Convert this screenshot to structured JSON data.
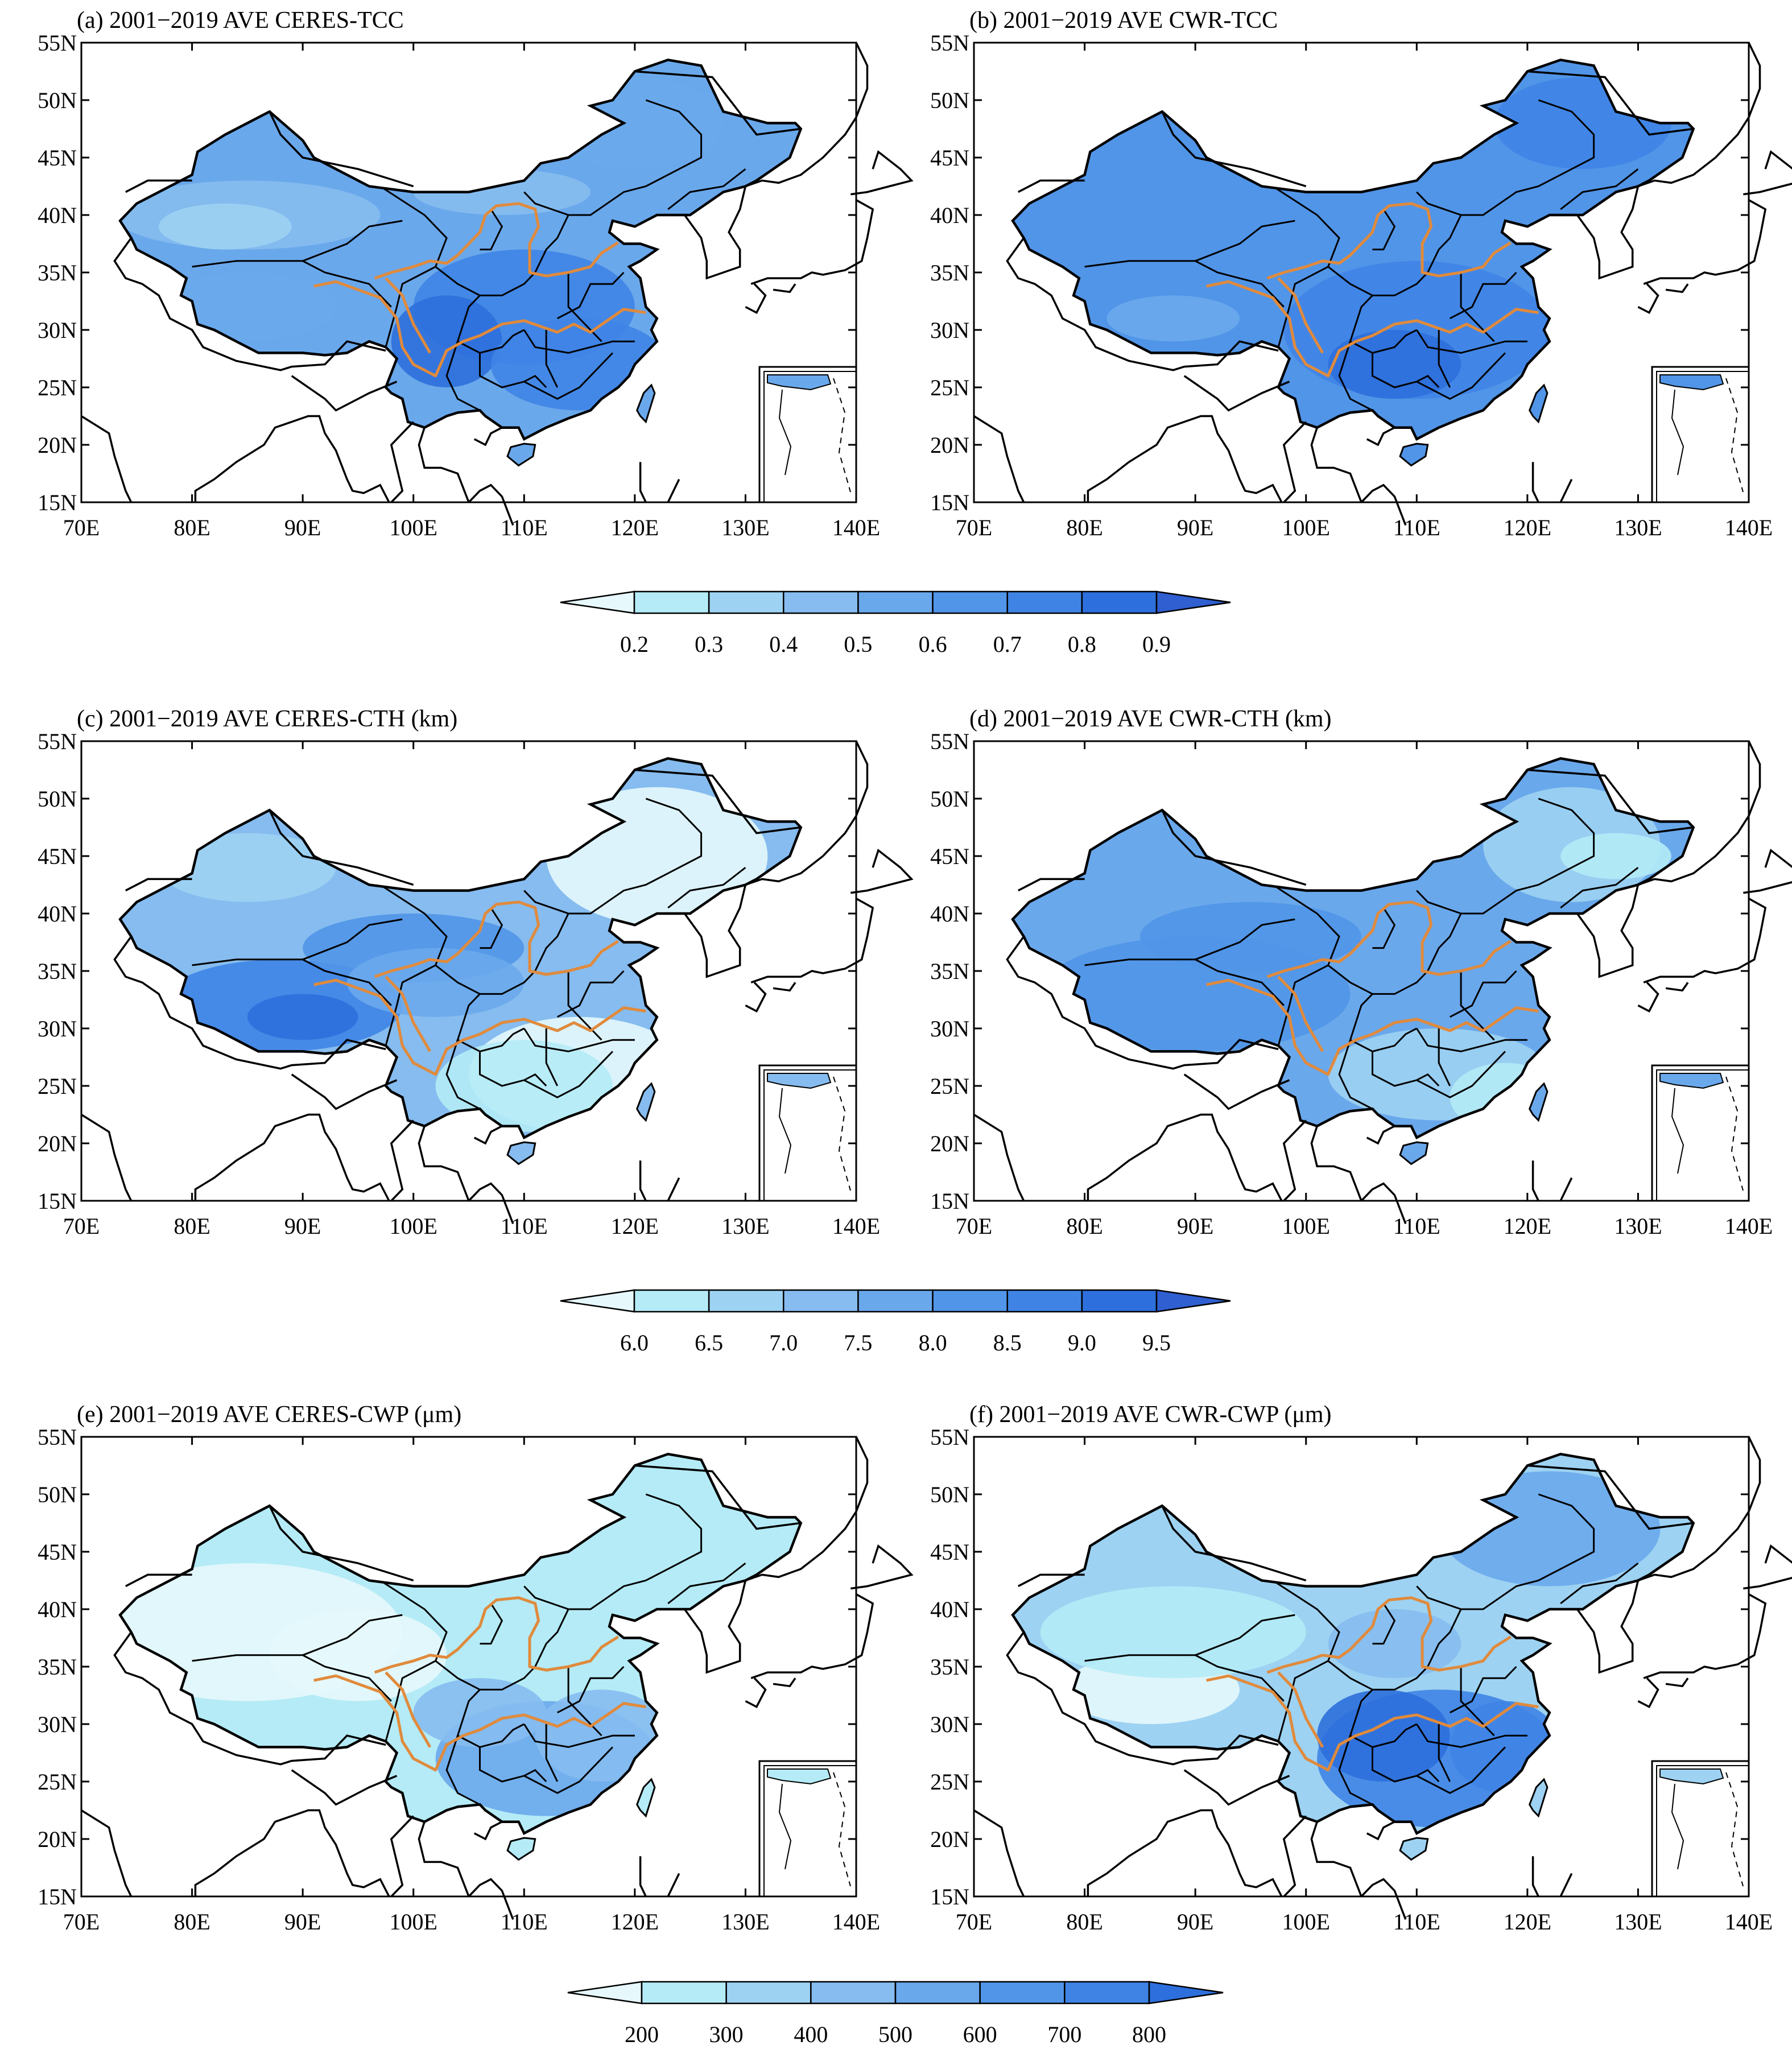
{
  "panels": [
    {
      "id": "a",
      "title": "(a) 2001−2019 AVE CERES-TCC",
      "row": 0,
      "col": 0,
      "scheme": "tcc_ceres"
    },
    {
      "id": "b",
      "title": "(b) 2001−2019 AVE CWR-TCC",
      "row": 0,
      "col": 1,
      "scheme": "tcc_cwr"
    },
    {
      "id": "c",
      "title": "(c) 2001−2019 AVE CERES-CTH (km)",
      "row": 1,
      "col": 0,
      "scheme": "cth_ceres"
    },
    {
      "id": "d",
      "title": "(d) 2001−2019 AVE CWR-CTH (km)",
      "row": 1,
      "col": 1,
      "scheme": "cth_cwr"
    },
    {
      "id": "e",
      "title": "(e) 2001−2019 AVE CERES-CWP (μm)",
      "row": 2,
      "col": 0,
      "scheme": "cwp_ceres"
    },
    {
      "id": "f",
      "title": "(f) 2001−2019 AVE CWR-CWP (μm)",
      "row": 2,
      "col": 1,
      "scheme": "cwp_cwr"
    }
  ],
  "axes": {
    "lat_labels": [
      "55N",
      "50N",
      "45N",
      "40N",
      "35N",
      "30N",
      "25N",
      "20N",
      "15N"
    ],
    "lon_labels": [
      "70E",
      "80E",
      "90E",
      "100E",
      "110E",
      "120E",
      "130E",
      "140E"
    ],
    "lat_range": [
      15,
      55
    ],
    "lon_range": [
      70,
      140
    ]
  },
  "colorbars": [
    {
      "labels": [
        "0.2",
        "0.3",
        "0.4",
        "0.5",
        "0.6",
        "0.7",
        "0.8",
        "0.9"
      ],
      "colors": [
        "#e6f8fc",
        "#b4ebf6",
        "#9dd2f2",
        "#86bcef",
        "#6aa8ec",
        "#5195e8",
        "#3f84e5",
        "#2d6fdc",
        "#2f5fd0"
      ]
    },
    {
      "labels": [
        "6.0",
        "6.5",
        "7.0",
        "7.5",
        "8.0",
        "8.5",
        "9.0",
        "9.5"
      ],
      "colors": [
        "#e6f8fc",
        "#b4ebf6",
        "#9dd2f2",
        "#86bcef",
        "#6aa8ec",
        "#5195e8",
        "#3f84e5",
        "#2d6fdc",
        "#2f5fd0"
      ]
    },
    {
      "labels": [
        "200",
        "300",
        "400",
        "500",
        "600",
        "700",
        "800"
      ],
      "colors": [
        "#e6f8fc",
        "#b4ebf6",
        "#9dd2f2",
        "#86bcef",
        "#6aa8ec",
        "#5195e8",
        "#3f84e5",
        "#2d6fdc"
      ]
    }
  ],
  "colors": {
    "river": "#e08a3c",
    "border": "#000000"
  }
}
